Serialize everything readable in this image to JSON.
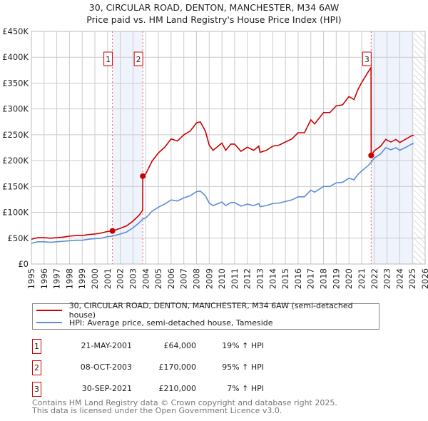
{
  "chart_data": {
    "type": "line",
    "title": "30, CIRCULAR ROAD, DENTON, MANCHESTER, M34 6AW",
    "subtitle": "Price paid vs. HM Land Registry's House Price Index (HPI)",
    "xlim": [
      1995,
      2026
    ],
    "ylim": [
      0,
      450000
    ],
    "y_ticks": [
      {
        "v": 0,
        "l": "£0"
      },
      {
        "v": 50000,
        "l": "£50K"
      },
      {
        "v": 100000,
        "l": "£100K"
      },
      {
        "v": 150000,
        "l": "£150K"
      },
      {
        "v": 200000,
        "l": "£200K"
      },
      {
        "v": 250000,
        "l": "£250K"
      },
      {
        "v": 300000,
        "l": "£300K"
      },
      {
        "v": 350000,
        "l": "£350K"
      },
      {
        "v": 400000,
        "l": "£400K"
      },
      {
        "v": 450000,
        "l": "£450K"
      }
    ],
    "x_ticks": [
      "1995",
      "1996",
      "1997",
      "1998",
      "1999",
      "2000",
      "2001",
      "2002",
      "2003",
      "2004",
      "2005",
      "2006",
      "2007",
      "2008",
      "2009",
      "2010",
      "2011",
      "2012",
      "2013",
      "2014",
      "2015",
      "2016",
      "2017",
      "2018",
      "2019",
      "2020",
      "2021",
      "2022",
      "2023",
      "2024",
      "2025",
      "2026"
    ],
    "grid": true,
    "series": [
      {
        "name": "30, CIRCULAR ROAD, DENTON, MANCHESTER, M34 6AW (semi-detached house)",
        "color": "#cc0000",
        "x": [
          1995,
          1995.5,
          1996,
          1996.5,
          1997,
          1997.5,
          1998,
          1998.5,
          1999,
          1999.5,
          2000,
          2000.5,
          2001,
          2001.38,
          2002,
          2002.5,
          2003,
          2003.5,
          2003.76,
          2003.77,
          2004,
          2004.5,
          2005,
          2005.5,
          2006,
          2006.5,
          2007,
          2007.5,
          2008,
          2008.3,
          2008.7,
          2009,
          2009.3,
          2009.7,
          2010,
          2010.3,
          2010.7,
          2011,
          2011.5,
          2012,
          2012.5,
          2012.9,
          2013,
          2013.5,
          2014,
          2014.5,
          2015,
          2015.5,
          2016,
          2016.5,
          2017,
          2017.3,
          2018,
          2018.5,
          2019,
          2019.5,
          2020,
          2020.4,
          2020.7,
          2021,
          2021.5,
          2021.74,
          2021.75,
          2022,
          2022.5,
          2022.9,
          2023.3,
          2023.7,
          2024,
          2024.5,
          2025,
          2025.1
        ],
        "y": [
          48000,
          51000,
          51000,
          50000,
          51000,
          52000,
          54000,
          55000,
          55000,
          57000,
          58000,
          60000,
          63000,
          64000,
          69000,
          74000,
          83000,
          95000,
          104000,
          170000,
          174000,
          199000,
          215000,
          226000,
          242000,
          238000,
          250000,
          257000,
          273000,
          275000,
          257000,
          230000,
          220000,
          228000,
          234000,
          220000,
          232000,
          232000,
          218000,
          226000,
          220000,
          228000,
          216000,
          220000,
          228000,
          230000,
          236000,
          242000,
          254000,
          254000,
          279000,
          271000,
          293000,
          293000,
          306000,
          308000,
          324000,
          318000,
          337000,
          351000,
          371000,
          380000,
          210000,
          219000,
          228000,
          241000,
          236000,
          241000,
          235000,
          242000,
          249000,
          248000
        ]
      },
      {
        "name": "HPI: Average price, semi-detached house, Tameside",
        "color": "#5b8fd4",
        "x": [
          1995,
          1995.5,
          1996,
          1996.5,
          1997,
          1997.5,
          1998,
          1998.5,
          1999,
          1999.5,
          2000,
          2000.5,
          2001,
          2001.38,
          2002,
          2002.5,
          2003,
          2003.5,
          2003.77,
          2004,
          2004.5,
          2005,
          2005.5,
          2006,
          2006.5,
          2007,
          2007.5,
          2008,
          2008.3,
          2008.7,
          2009,
          2009.3,
          2009.7,
          2010,
          2010.3,
          2010.7,
          2011,
          2011.5,
          2012,
          2012.5,
          2012.9,
          2013,
          2013.5,
          2014,
          2014.5,
          2015,
          2015.5,
          2016,
          2016.5,
          2017,
          2017.3,
          2018,
          2018.5,
          2019,
          2019.5,
          2020,
          2020.4,
          2020.7,
          2021,
          2021.5,
          2021.75,
          2022,
          2022.5,
          2022.9,
          2023.3,
          2023.7,
          2024,
          2024.5,
          2025,
          2025.1
        ],
        "y": [
          40000,
          43000,
          43000,
          42000,
          43000,
          44000,
          45000,
          46000,
          46000,
          48000,
          49000,
          50000,
          53000,
          54000,
          58000,
          62000,
          70000,
          80000,
          87000,
          89000,
          102000,
          110000,
          116000,
          124000,
          122000,
          128000,
          132000,
          140000,
          141000,
          132000,
          118000,
          113000,
          117000,
          120000,
          113000,
          119000,
          119000,
          112000,
          116000,
          113000,
          117000,
          111000,
          113000,
          117000,
          118000,
          121000,
          124000,
          130000,
          130000,
          143000,
          139000,
          150000,
          150000,
          157000,
          158000,
          166000,
          163000,
          173000,
          180000,
          190000,
          197000,
          205000,
          213000,
          225000,
          221000,
          225000,
          220000,
          226000,
          233000,
          232000
        ]
      }
    ],
    "sales": [
      {
        "label": "1",
        "x": 2001.38,
        "y": 64000,
        "date": "21-MAY-2001",
        "price": "£64,000",
        "hpi": "19% ↑ HPI"
      },
      {
        "label": "2",
        "x": 2003.77,
        "y": 170000,
        "date": "08-OCT-2003",
        "price": "£170,000",
        "hpi": "95% ↑ HPI"
      },
      {
        "label": "3",
        "x": 2021.75,
        "y": 210000,
        "date": "30-SEP-2021",
        "price": "£210,000",
        "hpi": "7% ↑ HPI"
      }
    ],
    "shaded_ranges": [
      [
        2001.38,
        2003.77
      ],
      [
        2021.75,
        2025.1
      ]
    ],
    "hatched_from": 2025.1,
    "legend": {
      "items": [
        "30, CIRCULAR ROAD, DENTON, MANCHESTER, M34 6AW (semi-detached house)",
        "HPI: Average price, semi-detached house, Tameside"
      ],
      "placement": "below"
    }
  },
  "footer": {
    "line1": "Contains HM Land Registry data © Crown copyright and database right 2025.",
    "line2": "This data is licensed under the Open Government Licence v3.0."
  }
}
